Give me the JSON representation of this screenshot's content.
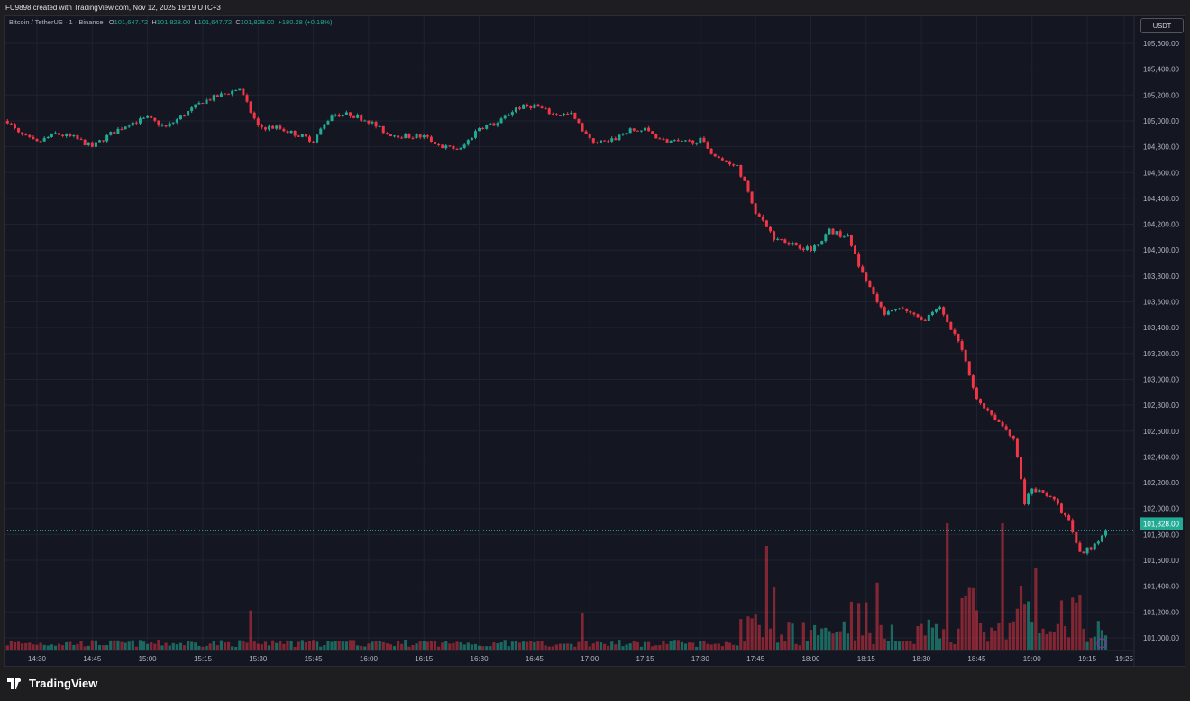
{
  "header": {
    "credit": "FU9898 created with TradingView.com, Nov 12, 2025 19:19 UTC+3"
  },
  "legend": {
    "symbol": "Bitcoin / TetherUS · 1 · Binance",
    "o_label": "O",
    "o": "101,647.72",
    "h_label": "H",
    "h": "101,828.00",
    "l_label": "L",
    "l": "101,647.72",
    "c_label": "C",
    "c": "101,828.00",
    "change": "+180.28 (+0.18%)"
  },
  "currency": "USDT",
  "footer": {
    "brand": "TradingView"
  },
  "colors": {
    "up": "#22ab94",
    "down": "#f23645",
    "bg": "#141722",
    "grid": "#1f2330"
  },
  "chart_data": {
    "type": "candlestick",
    "title": "Bitcoin / TetherUS · 1 · Binance",
    "interval_minutes": 1,
    "ylim": [
      100900,
      105700
    ],
    "y_ticks": [
      "105,600.00",
      "105,400.00",
      "105,200.00",
      "105,000.00",
      "104,800.00",
      "104,600.00",
      "104,400.00",
      "104,200.00",
      "104,000.00",
      "103,800.00",
      "103,600.00",
      "103,400.00",
      "103,200.00",
      "103,000.00",
      "102,800.00",
      "102,600.00",
      "102,400.00",
      "102,200.00",
      "102,000.00",
      "101,800.00",
      "101,600.00",
      "101,400.00",
      "101,200.00",
      "101,000.00"
    ],
    "x_ticks": [
      "14:30",
      "14:45",
      "15:00",
      "15:15",
      "15:30",
      "15:45",
      "16:00",
      "16:15",
      "16:30",
      "16:45",
      "17:00",
      "17:15",
      "17:30",
      "17:45",
      "18:00",
      "18:15",
      "18:30",
      "18:45",
      "19:00",
      "19:15",
      "19:25"
    ],
    "last_price": "101,828.00",
    "close_keypoints": [
      [
        "14:22",
        105000
      ],
      [
        "14:25",
        104900
      ],
      [
        "14:30",
        104830
      ],
      [
        "14:35",
        104900
      ],
      [
        "14:40",
        104870
      ],
      [
        "14:45",
        104800
      ],
      [
        "14:50",
        104900
      ],
      [
        "14:55",
        104980
      ],
      [
        "15:00",
        105020
      ],
      [
        "15:05",
        104950
      ],
      [
        "15:10",
        105050
      ],
      [
        "15:15",
        105150
      ],
      [
        "15:20",
        105200
      ],
      [
        "15:25",
        105250
      ],
      [
        "15:30",
        104950
      ],
      [
        "15:35",
        104950
      ],
      [
        "15:40",
        104900
      ],
      [
        "15:45",
        104850
      ],
      [
        "15:50",
        105050
      ],
      [
        "15:55",
        105050
      ],
      [
        "16:00",
        105000
      ],
      [
        "16:05",
        104900
      ],
      [
        "16:10",
        104880
      ],
      [
        "16:15",
        104880
      ],
      [
        "16:20",
        104800
      ],
      [
        "16:25",
        104780
      ],
      [
        "16:30",
        104950
      ],
      [
        "16:35",
        104980
      ],
      [
        "16:40",
        105100
      ],
      [
        "16:45",
        105120
      ],
      [
        "16:50",
        105050
      ],
      [
        "16:55",
        105050
      ],
      [
        "17:00",
        104850
      ],
      [
        "17:05",
        104830
      ],
      [
        "17:10",
        104920
      ],
      [
        "17:15",
        104930
      ],
      [
        "17:20",
        104850
      ],
      [
        "17:25",
        104830
      ],
      [
        "17:30",
        104850
      ],
      [
        "17:35",
        104700
      ],
      [
        "17:40",
        104660
      ],
      [
        "17:45",
        104300
      ],
      [
        "17:50",
        104100
      ],
      [
        "17:55",
        104050
      ],
      [
        "18:00",
        104000
      ],
      [
        "18:05",
        104150
      ],
      [
        "18:10",
        104100
      ],
      [
        "18:15",
        103750
      ],
      [
        "18:20",
        103500
      ],
      [
        "18:25",
        103550
      ],
      [
        "18:30",
        103450
      ],
      [
        "18:35",
        103550
      ],
      [
        "18:40",
        103300
      ],
      [
        "18:45",
        102850
      ],
      [
        "18:50",
        102700
      ],
      [
        "18:55",
        102550
      ],
      [
        "18:58",
        102050
      ],
      [
        "19:00",
        102150
      ],
      [
        "19:05",
        102100
      ],
      [
        "19:10",
        101900
      ],
      [
        "19:13",
        101650
      ],
      [
        "19:16",
        101700
      ],
      [
        "19:20",
        101828
      ]
    ],
    "volume_spikes": [
      [
        "17:48",
        115
      ],
      [
        "18:37",
        140
      ],
      [
        "18:52",
        140
      ],
      [
        "19:01",
        90
      ],
      [
        "19:13",
        60
      ]
    ]
  }
}
